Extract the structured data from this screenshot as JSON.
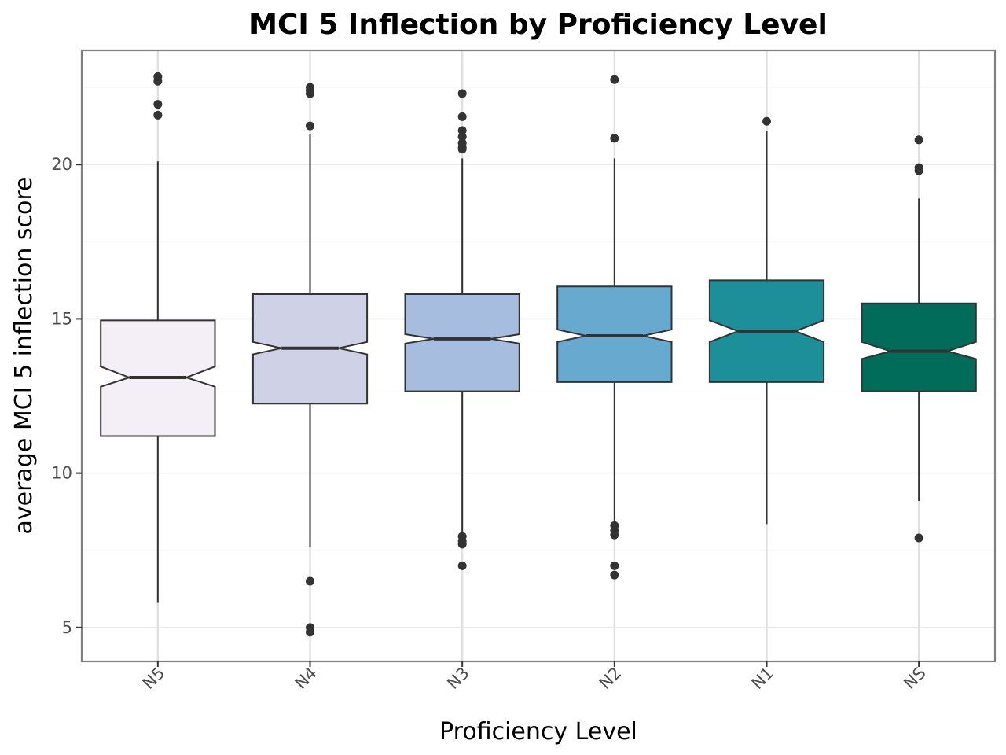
{
  "chart_data": {
    "type": "boxplot",
    "notched": true,
    "title": "MCI 5 Inflection by Proficiency Level",
    "xlabel": "Proficiency Level",
    "ylabel": "average MCI 5 inflection score",
    "ylim": [
      3.9,
      23.7
    ],
    "yticks": [
      5,
      10,
      15,
      20
    ],
    "ytick_labels": [
      "5",
      "10",
      "15",
      "20"
    ],
    "grid": true,
    "categories": [
      "N5",
      "N4",
      "N3",
      "N2",
      "N1",
      "NS"
    ],
    "colors": [
      "#f4eef6",
      "#cfd1e7",
      "#a7bddf",
      "#67a9cf",
      "#1c8f98",
      "#016c59"
    ],
    "boxes": [
      {
        "label": "N5",
        "whisker_low": 5.8,
        "q1": 11.2,
        "median": 13.1,
        "q3": 14.95,
        "whisker_high": 20.1,
        "notch_low": 12.8,
        "notch_high": 13.45,
        "outliers": [
          22.85,
          22.7,
          21.95,
          21.6
        ]
      },
      {
        "label": "N4",
        "whisker_low": 7.6,
        "q1": 12.25,
        "median": 14.05,
        "q3": 15.8,
        "whisker_high": 21.0,
        "notch_low": 13.85,
        "notch_high": 14.25,
        "outliers": [
          22.5,
          22.4,
          22.3,
          21.25,
          6.5,
          5.0,
          4.85
        ]
      },
      {
        "label": "N3",
        "whisker_low": 8.0,
        "q1": 12.65,
        "median": 14.35,
        "q3": 15.8,
        "whisker_high": 20.2,
        "notch_low": 14.2,
        "notch_high": 14.5,
        "outliers": [
          22.3,
          21.55,
          21.1,
          20.9,
          20.7,
          20.55,
          20.5,
          7.95,
          7.8,
          7.7,
          7.0
        ]
      },
      {
        "label": "N2",
        "whisker_low": 8.4,
        "q1": 12.95,
        "median": 14.45,
        "q3": 16.05,
        "whisker_high": 20.2,
        "notch_low": 14.25,
        "notch_high": 14.65,
        "outliers": [
          22.75,
          20.85,
          8.3,
          8.15,
          8.0,
          7.0,
          6.7
        ]
      },
      {
        "label": "N1",
        "whisker_low": 8.35,
        "q1": 12.95,
        "median": 14.6,
        "q3": 16.25,
        "whisker_high": 21.1,
        "notch_low": 14.25,
        "notch_high": 14.95,
        "outliers": [
          21.4
        ]
      },
      {
        "label": "NS",
        "whisker_low": 9.1,
        "q1": 12.65,
        "median": 13.95,
        "q3": 15.5,
        "whisker_high": 18.9,
        "notch_low": 13.7,
        "notch_high": 14.25,
        "outliers": [
          20.8,
          19.9,
          19.8,
          7.9
        ]
      }
    ]
  }
}
